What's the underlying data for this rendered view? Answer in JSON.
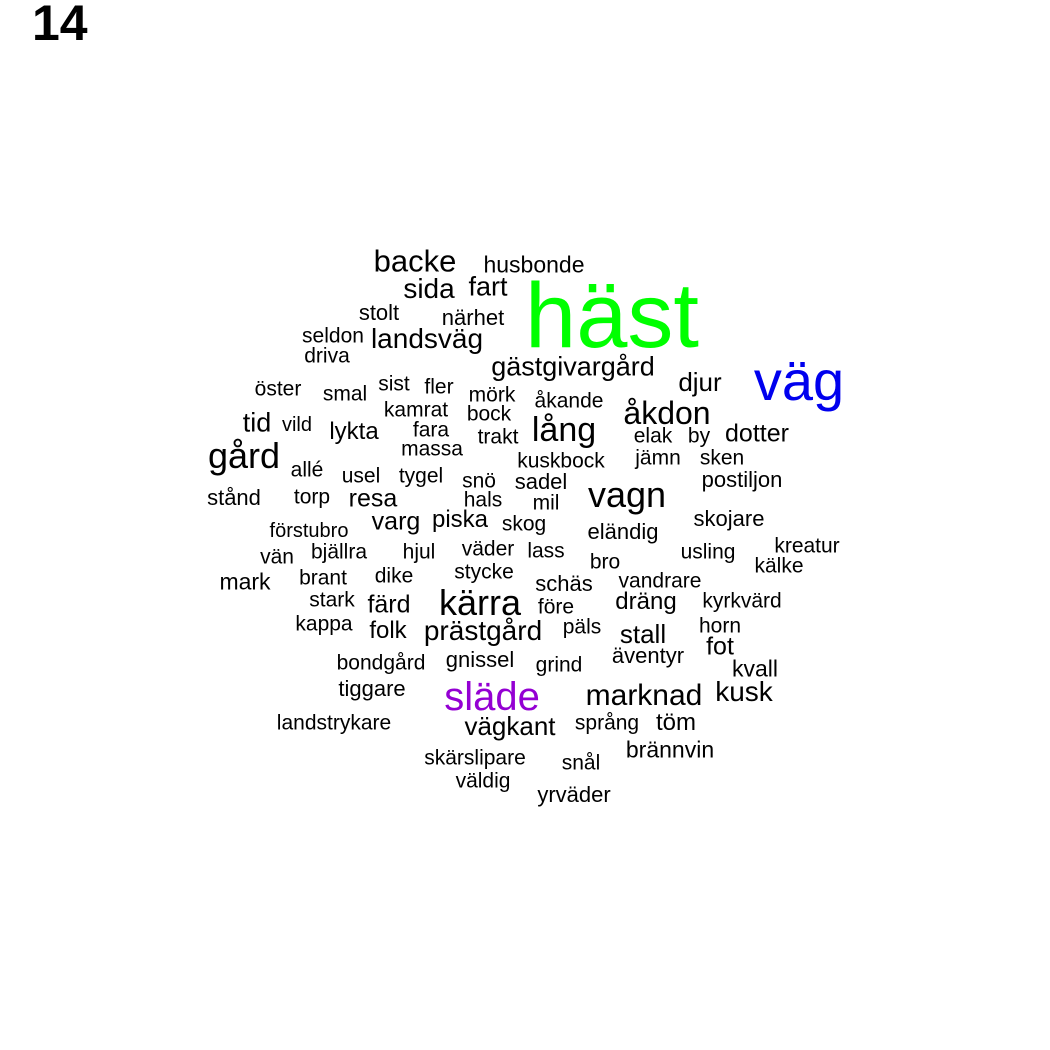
{
  "page_number": "14",
  "colors": {
    "default": "#000000",
    "hast": "#00ff00",
    "vag": "#0000ee",
    "slade": "#9400d3"
  },
  "words": [
    "häst",
    "väg",
    "släde",
    "gård",
    "kärra",
    "vagn",
    "lång",
    "åkdon",
    "backe",
    "marknad",
    "kusk",
    "sida",
    "fart",
    "landsväg",
    "gästgivargård",
    "prästgård",
    "stall",
    "vägkant",
    "djur",
    "dotter",
    "tid",
    "fot",
    "lykta",
    "resa",
    "varg",
    "piska",
    "folk",
    "färd",
    "dräng",
    "töm",
    "kvall",
    "husbonde",
    "stolt",
    "närhet",
    "seldon",
    "driva",
    "öster",
    "smal",
    "sist",
    "fler",
    "mörk",
    "åkande",
    "kamrat",
    "bock",
    "vild",
    "fara",
    "trakt",
    "elak",
    "by",
    "massa",
    "allé",
    "usel",
    "tygel",
    "snö",
    "kuskbock",
    "jämn",
    "sken",
    "sadel",
    "postiljon",
    "stånd",
    "torp",
    "hals",
    "mil",
    "förstubro",
    "skog",
    "eländig",
    "skojare",
    "vän",
    "bjällra",
    "hjul",
    "väder",
    "lass",
    "bro",
    "usling",
    "kreatur",
    "kälke",
    "mark",
    "brant",
    "dike",
    "stycke",
    "schäs",
    "vandrare",
    "stark",
    "före",
    "kyrkvärd",
    "kappa",
    "päls",
    "horn",
    "äventyr",
    "bondgård",
    "gnissel",
    "grind",
    "tiggare",
    "landstrykare",
    "språng",
    "brännvin",
    "skärslipare",
    "snål",
    "väldig",
    "yrväder"
  ]
}
